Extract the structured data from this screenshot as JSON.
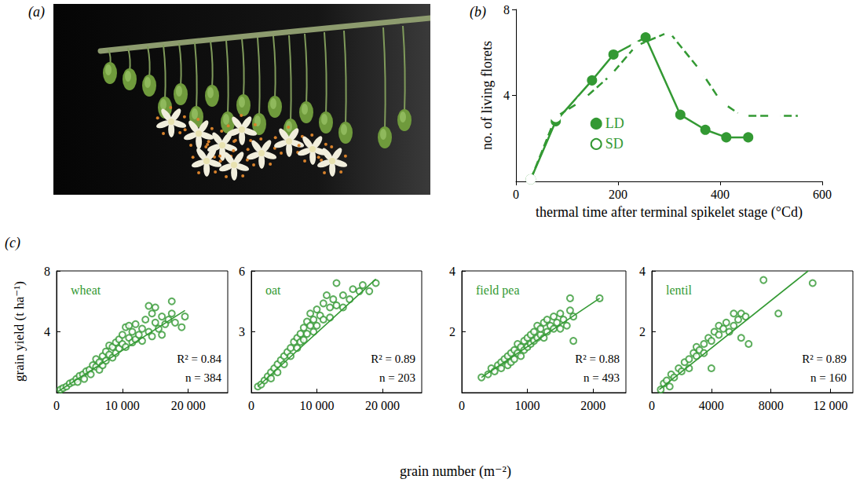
{
  "photo": {
    "panel": "(a)"
  },
  "panel_c": {
    "panel": "(c)",
    "x_label": "grain number (m⁻²)",
    "y_label": "grain yield (t ha⁻¹)"
  },
  "chart_data": [
    {
      "type": "line",
      "panel": "(b)",
      "x_label": "thermal time after terminal spikelet stage (°Cd)",
      "y_label": "no. of living florets",
      "xlim": [
        0,
        600
      ],
      "xticks": [
        0,
        200,
        400,
        600
      ],
      "ylim": [
        0,
        8
      ],
      "yticks": [
        4,
        8
      ],
      "grid": false,
      "legend": "lower left",
      "series": [
        {
          "name": "LD",
          "color": "#339933",
          "marker": "circle",
          "line_style": "solid",
          "x": [
            29,
            78,
            149,
            191,
            254,
            322,
            371,
            412,
            455
          ],
          "values": [
            0.1,
            2.8,
            4.7,
            5.9,
            6.7,
            3.1,
            2.4,
            2.05,
            2.05
          ]
        },
        {
          "name": "SD",
          "color": "#339933",
          "marker": "open circle",
          "line_style": "dashed",
          "x": [
            29,
            78,
            129,
            186,
            235,
            300,
            363,
            402,
            443,
            508,
            562
          ],
          "values": [
            0.1,
            3.0,
            3.75,
            4.95,
            6.3,
            6.95,
            5.1,
            3.7,
            3.05,
            3.05,
            3.05
          ]
        }
      ]
    },
    {
      "type": "scatter",
      "title": "wheat",
      "color": "#339933",
      "marker": "open circle",
      "grid": false,
      "xlim": [
        0,
        26000
      ],
      "xticks": [
        0,
        {
          "value": 10000,
          "label": "10 000"
        },
        {
          "value": 20000,
          "label": "20 000"
        }
      ],
      "ylim": [
        0,
        8
      ],
      "yticks": [
        4,
        8
      ],
      "annotations": [
        "R² = 0.84",
        "n = 384"
      ],
      "x": [
        600,
        1000,
        1500,
        2000,
        2500,
        3000,
        3200,
        3500,
        4000,
        4200,
        4500,
        5000,
        5200,
        5500,
        6000,
        6000,
        6500,
        6500,
        7000,
        7000,
        7500,
        7500,
        8000,
        8000,
        8500,
        8500,
        9000,
        9000,
        9500,
        9500,
        10000,
        10000,
        10500,
        10500,
        11000,
        11000,
        11500,
        11500,
        12000,
        12000,
        12500,
        13000,
        13000,
        13500,
        14000,
        14000,
        14500,
        14500,
        15000,
        15000,
        15500,
        16000,
        16000,
        16500,
        17000,
        17500,
        17500,
        18000,
        19000,
        19500
      ],
      "values": [
        0.2,
        0.3,
        0.4,
        0.6,
        0.7,
        0.9,
        0.7,
        1.1,
        1.2,
        0.9,
        1.4,
        1.5,
        1.2,
        1.8,
        1.7,
        2.2,
        2.0,
        1.5,
        2.4,
        1.8,
        2.7,
        2.1,
        2.5,
        3.1,
        2.3,
        3.0,
        3.3,
        2.6,
        3.5,
        2.9,
        3.2,
        3.8,
        4.3,
        3.0,
        3.6,
        4.4,
        3.3,
        4.0,
        4.5,
        3.5,
        3.8,
        4.2,
        3.4,
        4.8,
        5.7,
        4.0,
        5.2,
        3.7,
        4.6,
        5.6,
        4.2,
        5.0,
        3.8,
        4.5,
        4.8,
        6.0,
        5.2,
        4.6,
        4.3,
        5.0
      ],
      "fit": {
        "x": [
          300,
          19500
        ],
        "y": [
          0.1,
          5.4
        ]
      }
    },
    {
      "type": "scatter",
      "title": "oat",
      "color": "#339933",
      "marker": "open circle",
      "grid": false,
      "xlim": [
        0,
        26000
      ],
      "xticks": [
        0,
        {
          "value": 10000,
          "label": "10 000"
        },
        {
          "value": 20000,
          "label": "20 000"
        }
      ],
      "ylim": [
        0,
        6
      ],
      "yticks": [
        3,
        6
      ],
      "annotations": [
        "R² = 0.89",
        "n = 203"
      ],
      "x": [
        1000,
        1500,
        2000,
        2500,
        3000,
        3000,
        3500,
        4000,
        4000,
        4500,
        5000,
        5000,
        5500,
        6000,
        6000,
        6500,
        7000,
        7000,
        7500,
        7500,
        8000,
        8000,
        8500,
        8500,
        9000,
        9000,
        9500,
        9500,
        10000,
        10000,
        10500,
        11000,
        11000,
        11500,
        12000,
        12000,
        12500,
        13000,
        13000,
        14000,
        14000,
        15000,
        15500,
        16500,
        17000,
        18000,
        19000
      ],
      "values": [
        0.3,
        0.4,
        0.6,
        0.8,
        1.0,
        0.7,
        1.2,
        1.4,
        1.0,
        1.6,
        1.8,
        1.4,
        2.0,
        2.2,
        1.8,
        2.5,
        2.7,
        2.2,
        2.9,
        2.5,
        3.2,
        2.6,
        3.5,
        2.9,
        3.3,
        3.9,
        3.6,
        3.0,
        4.1,
        3.3,
        3.8,
        4.4,
        3.6,
        4.8,
        4.2,
        3.7,
        4.6,
        5.4,
        4.3,
        4.8,
        4.2,
        4.6,
        5.1,
        5.0,
        5.3,
        5.0,
        5.4
      ],
      "fit": {
        "x": [
          1000,
          19000
        ],
        "y": [
          0.3,
          5.6
        ]
      }
    },
    {
      "type": "scatter",
      "title": "field pea",
      "color": "#339933",
      "marker": "open circle",
      "grid": false,
      "xlim": [
        0,
        2500
      ],
      "xticks": [
        0,
        1000,
        2000
      ],
      "ylim": [
        0,
        4
      ],
      "yticks": [
        2,
        4
      ],
      "annotations": [
        "R² = 0.88",
        "n = 493"
      ],
      "x": [
        300,
        400,
        450,
        500,
        550,
        600,
        600,
        650,
        700,
        700,
        750,
        750,
        800,
        800,
        850,
        850,
        900,
        900,
        950,
        950,
        1000,
        1000,
        1050,
        1050,
        1100,
        1100,
        1150,
        1150,
        1200,
        1200,
        1250,
        1250,
        1300,
        1300,
        1350,
        1400,
        1400,
        1450,
        1500,
        1500,
        1550,
        1600,
        1650,
        1650,
        1700,
        1700,
        2100
      ],
      "values": [
        0.5,
        0.6,
        0.8,
        0.7,
        0.9,
        0.8,
        1.0,
        1.1,
        0.9,
        1.2,
        1.3,
        1.0,
        1.1,
        1.4,
        1.3,
        1.6,
        1.2,
        1.5,
        1.7,
        1.4,
        1.5,
        1.8,
        1.6,
        1.9,
        1.7,
        2.0,
        1.8,
        2.2,
        1.9,
        2.1,
        2.3,
        1.8,
        2.0,
        2.4,
        2.2,
        2.1,
        2.5,
        2.3,
        2.6,
        2.1,
        2.4,
        2.2,
        2.7,
        3.1,
        2.5,
        1.7,
        3.1
      ],
      "fit": {
        "x": [
          300,
          2100
        ],
        "y": [
          0.5,
          3.1
        ]
      }
    },
    {
      "type": "scatter",
      "title": "lentil",
      "color": "#339933",
      "marker": "open circle",
      "grid": false,
      "xlim": [
        0,
        13500
      ],
      "xticks": [
        0,
        4000,
        8000,
        {
          "value": 12000,
          "label": "12 000"
        }
      ],
      "ylim": [
        0,
        4
      ],
      "yticks": [
        2,
        4
      ],
      "annotations": [
        "R² = 0.89",
        "n = 160"
      ],
      "x": [
        600,
        800,
        1000,
        1200,
        1300,
        1500,
        1800,
        2000,
        2200,
        2500,
        2500,
        2800,
        3000,
        3000,
        3200,
        3500,
        3500,
        3800,
        4000,
        4000,
        4200,
        4500,
        4500,
        4800,
        5000,
        5200,
        5500,
        5500,
        5800,
        6000,
        6000,
        6300,
        6500,
        7500,
        8500,
        10800
      ],
      "values": [
        0.1,
        0.3,
        0.4,
        0.2,
        0.6,
        0.5,
        0.8,
        0.7,
        1.0,
        1.1,
        0.8,
        1.3,
        1.2,
        1.5,
        1.4,
        1.6,
        1.3,
        1.8,
        1.7,
        0.8,
        2.0,
        1.9,
        2.2,
        2.1,
        2.3,
        2.0,
        2.6,
        2.2,
        2.4,
        2.6,
        1.8,
        2.5,
        1.6,
        3.7,
        2.6,
        3.6
      ],
      "fit": {
        "x": [
          500,
          10500
        ],
        "y": [
          0.1,
          4.0
        ]
      }
    }
  ]
}
